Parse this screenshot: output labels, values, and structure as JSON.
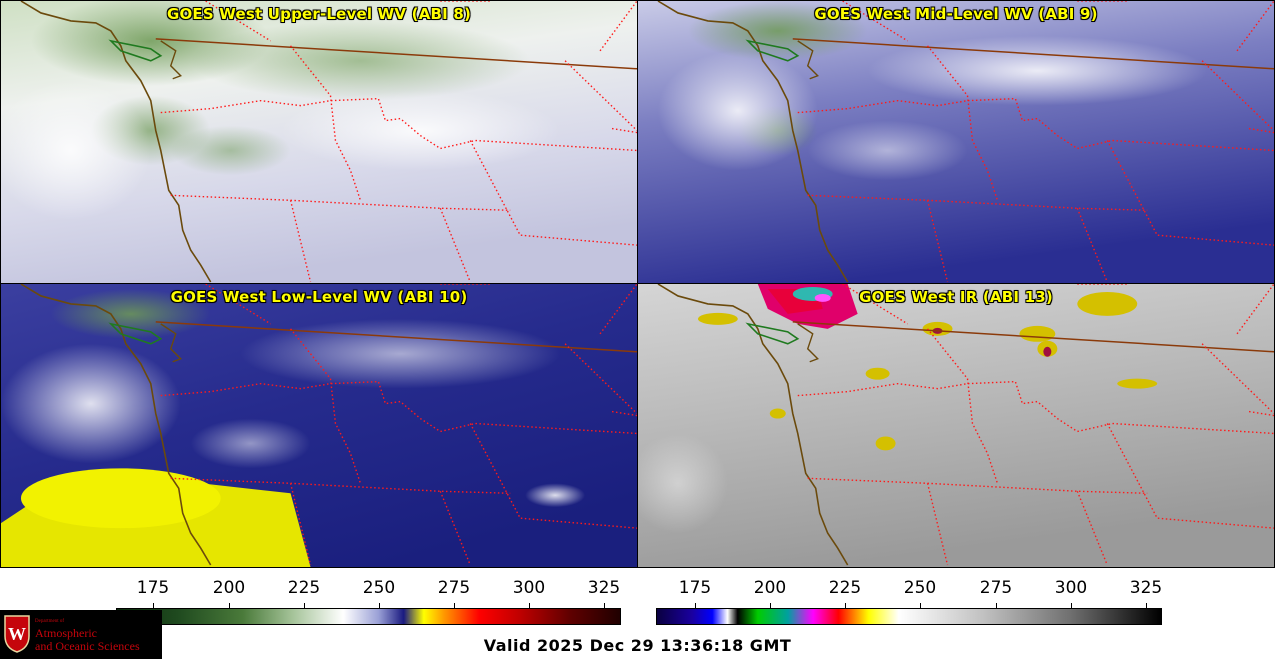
{
  "panels": {
    "upper": {
      "title": "GOES West Upper-Level WV (ABI 8)"
    },
    "mid": {
      "title": "GOES West Mid-Level WV (ABI 9)"
    },
    "low": {
      "title": "GOES West Low-Level WV (ABI 10)"
    },
    "ir": {
      "title": "GOES West IR (ABI 13)"
    }
  },
  "colorbars": {
    "wv": {
      "ticks": [
        "175",
        "200",
        "225",
        "250",
        "275",
        "300",
        "325"
      ]
    },
    "ir": {
      "ticks": [
        "175",
        "200",
        "225",
        "250",
        "275",
        "300",
        "325"
      ]
    }
  },
  "valid_time": "Valid 2025 Dec 29 13:36:18 GMT",
  "logo": {
    "dept": "Department of",
    "line1": "Atmospheric",
    "line2": "and Oceanic Sciences",
    "seal_letter": "W"
  },
  "colors": {
    "title_text": "#ffff00",
    "border_lines": "#ff0000",
    "coastline": "#7a5a10",
    "logo_red": "#c5050c"
  }
}
